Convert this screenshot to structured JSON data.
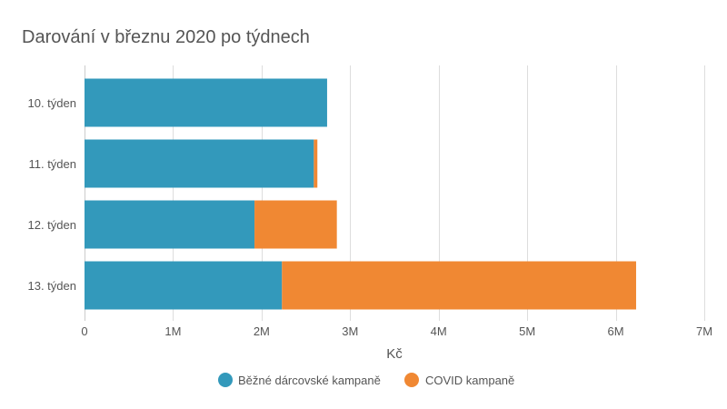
{
  "chart_data": {
    "type": "bar",
    "orientation": "horizontal",
    "stacked": true,
    "title": "Darování v březnu 2020 po týdnech",
    "xlabel": "Kč",
    "ylabel": "",
    "categories": [
      "10. týden",
      "11. týden",
      "12. týden",
      "13. týden"
    ],
    "series": [
      {
        "name": "Běžné dárcovské kampaně",
        "color": "#3399bb",
        "values": [
          2740000,
          2590000,
          1920000,
          2230000
        ]
      },
      {
        "name": "COVID kampaně",
        "color": "#f08833",
        "values": [
          0,
          40000,
          930000,
          4000000
        ]
      }
    ],
    "xlim": [
      0,
      7000000
    ],
    "xticks": [
      0,
      1000000,
      2000000,
      3000000,
      4000000,
      5000000,
      6000000,
      7000000
    ],
    "xtick_labels": [
      "0",
      "1M",
      "2M",
      "3M",
      "4M",
      "5M",
      "6M",
      "7M"
    ],
    "grid": true,
    "legend_position": "bottom"
  }
}
